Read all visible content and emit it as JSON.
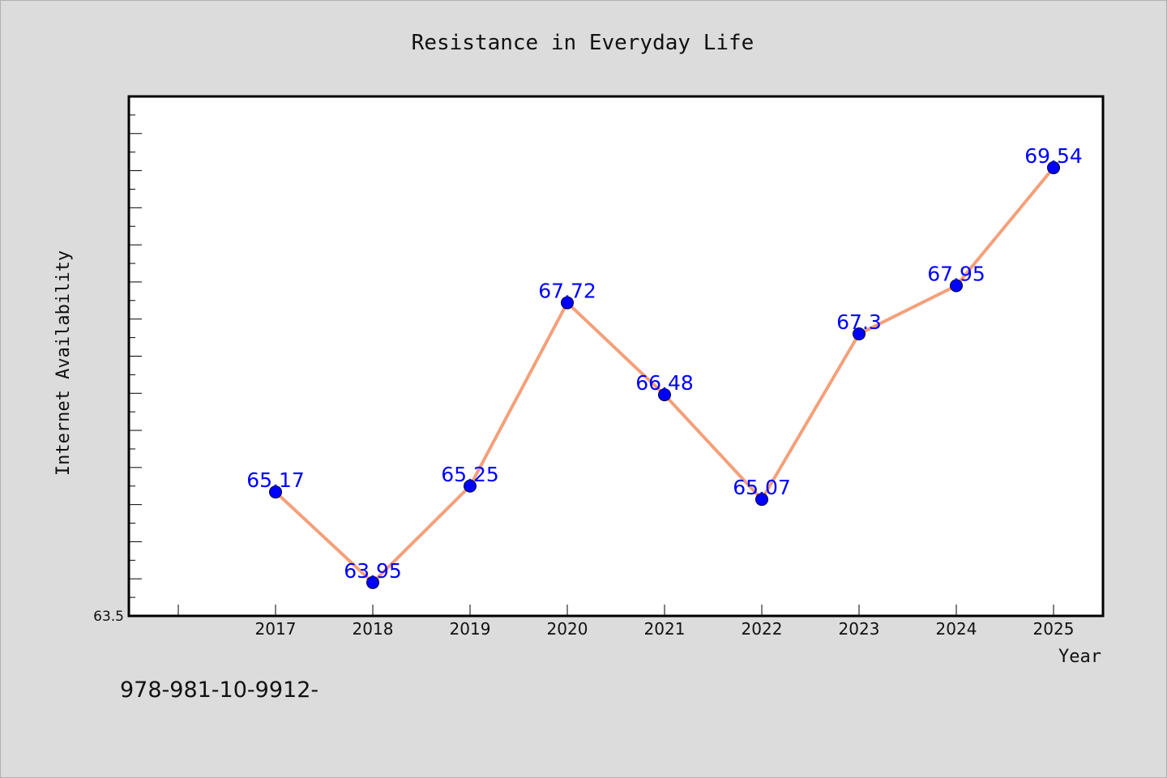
{
  "chart_data": {
    "type": "line",
    "title": "Resistance in Everyday Life",
    "xlabel": "Year",
    "ylabel": "Internet Availability",
    "categories": [
      "2017",
      "2018",
      "2019",
      "2020",
      "2021",
      "2022",
      "2023",
      "2024",
      "2025"
    ],
    "series": [
      {
        "values": [
          65.17,
          63.95,
          65.25,
          67.72,
          66.48,
          65.07,
          67.3,
          67.95,
          69.54
        ],
        "labels": [
          "65.17",
          "63.95",
          "65.25",
          "67.72",
          "66.48",
          "65.07",
          "67.3",
          "67.95",
          "69.54"
        ],
        "line_color": "#f4a07a",
        "marker_color": "#0000ff"
      }
    ],
    "y_tick_labels": [
      "63.5"
    ],
    "ylim": [
      63.5,
      70.5
    ],
    "grid": false,
    "legend": "none"
  },
  "footer": {
    "code": "978-981-10-9912-"
  }
}
